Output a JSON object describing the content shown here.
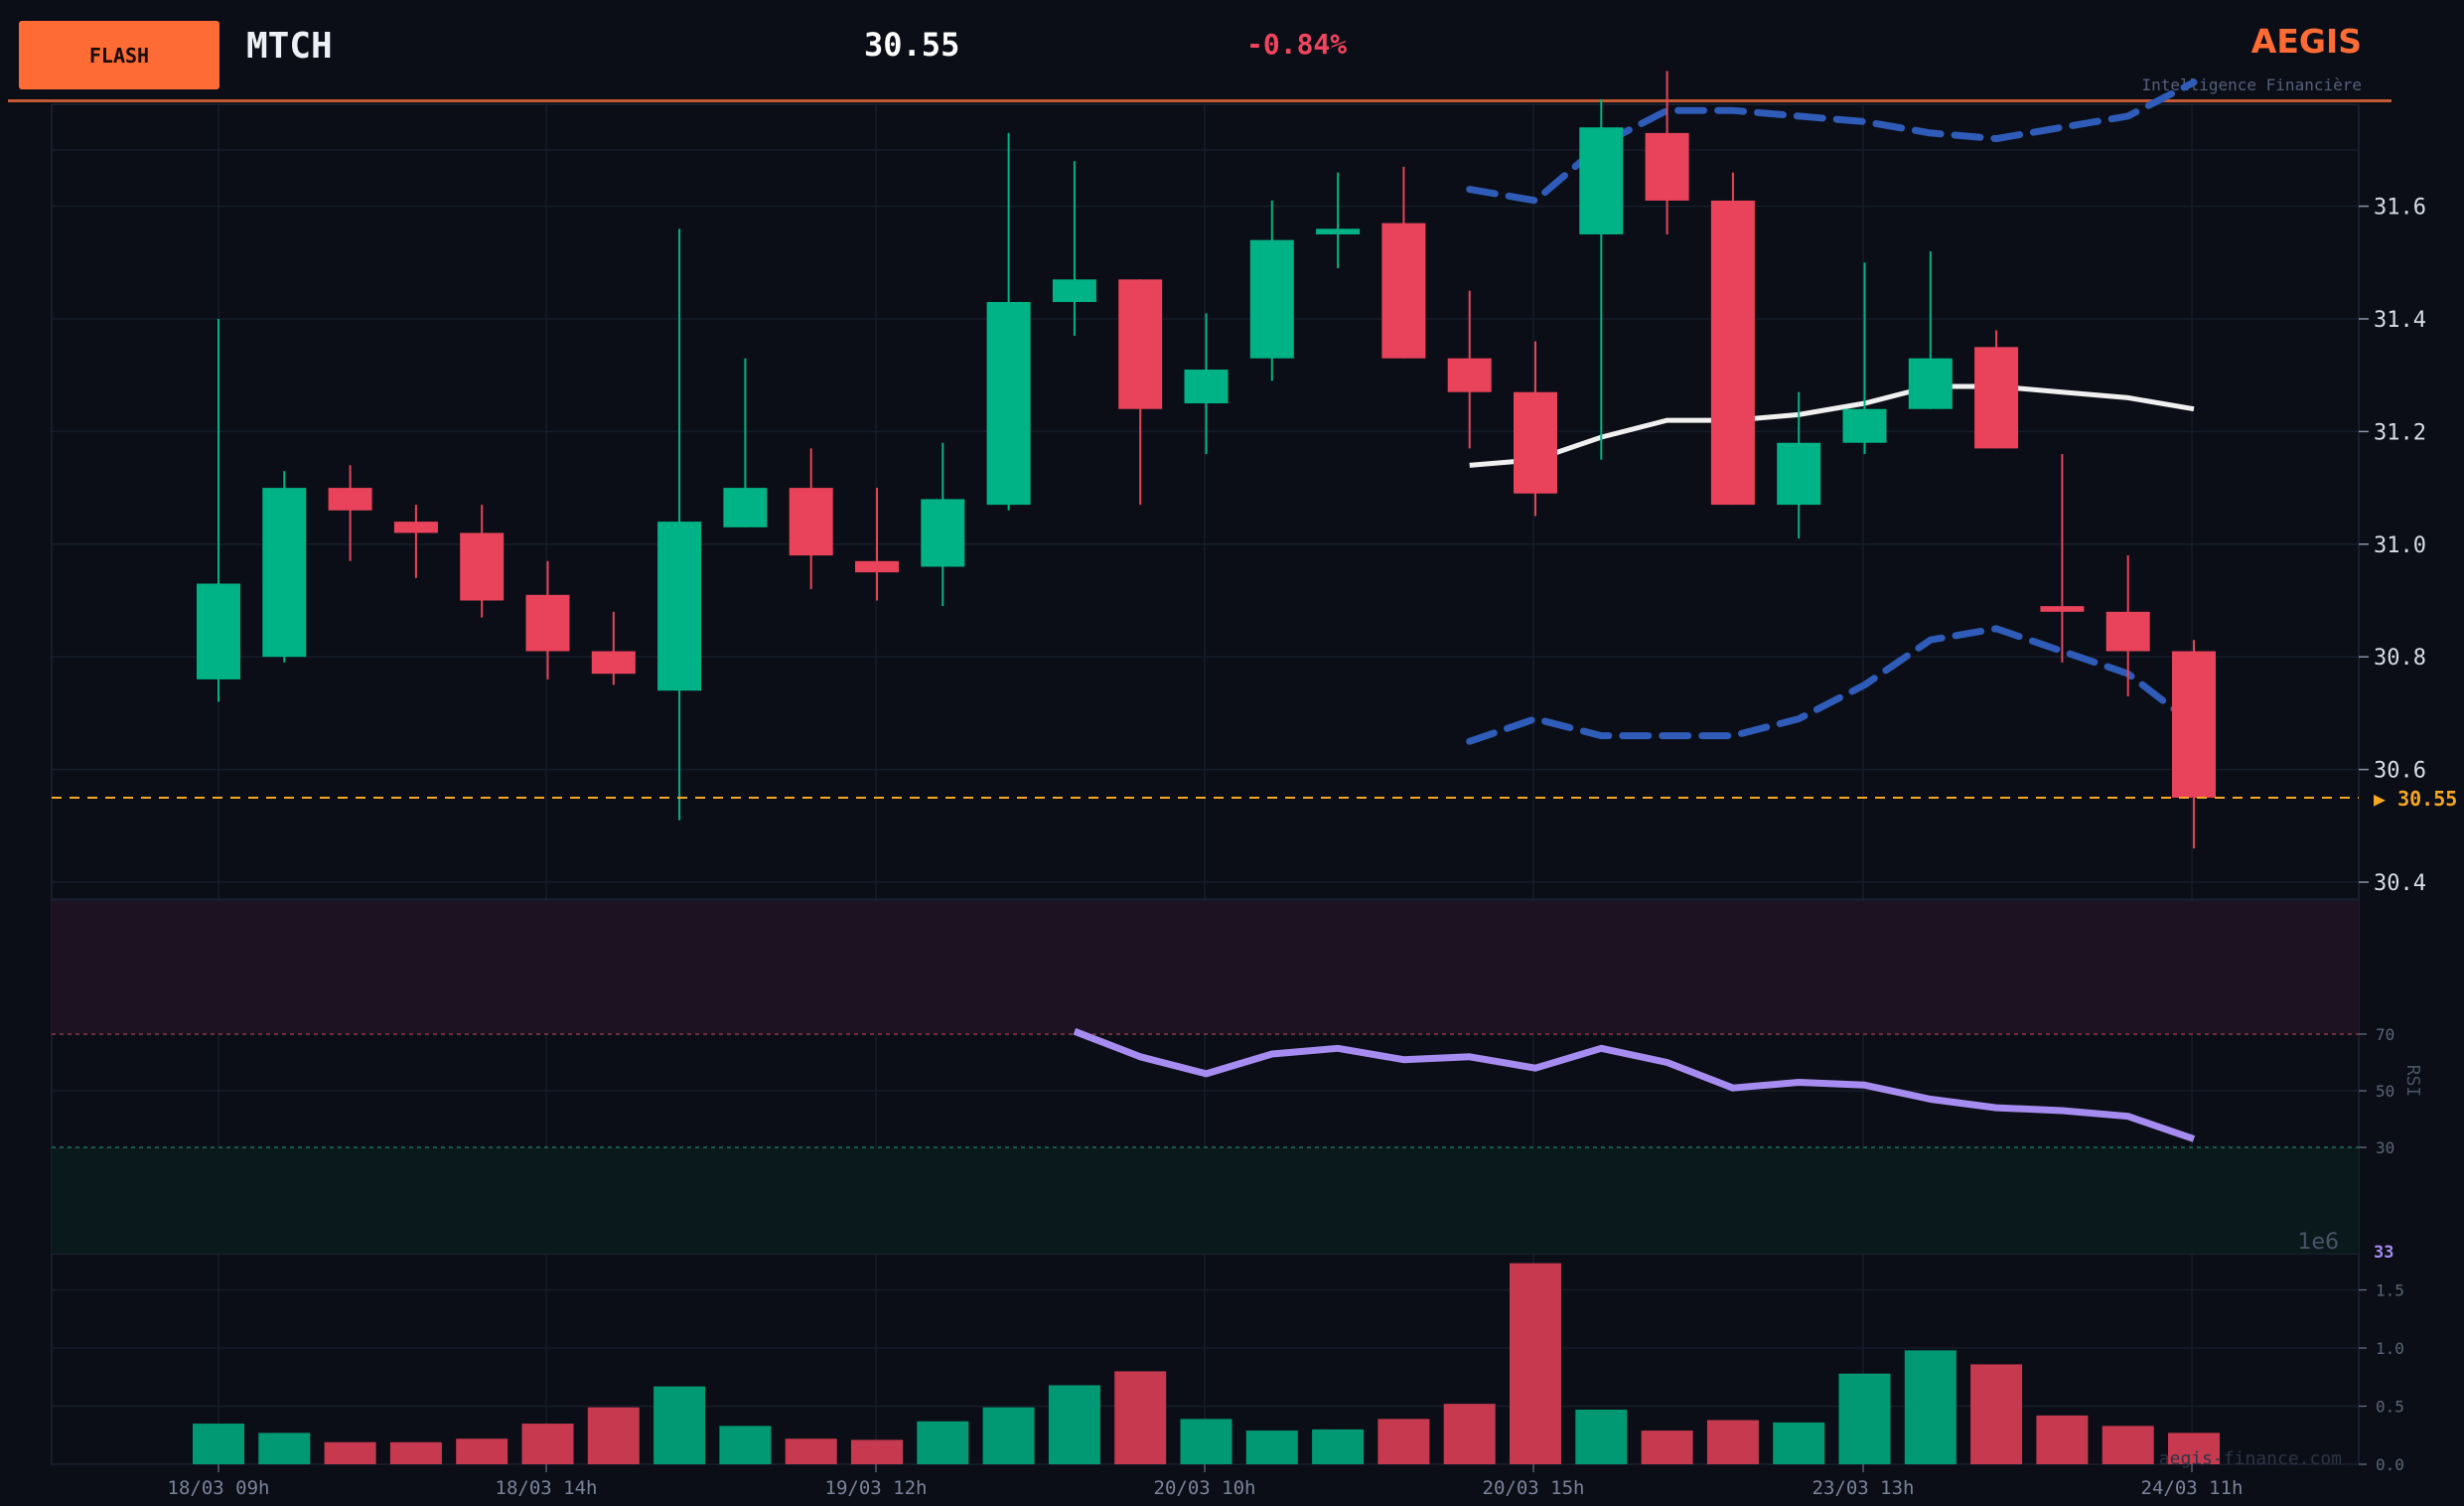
{
  "header": {
    "badge": "FLASH",
    "ticker": "MTCH",
    "price": "30.55",
    "change": "-0.84%",
    "brand": "AEGIS",
    "tagline": "Intelligence Financière"
  },
  "watermark": "aegis-finance.com",
  "colors": {
    "up": "#00b386",
    "down": "#e8435a",
    "band": "#2e5cb8",
    "sma": "#f0f0f0",
    "rsi": "#a68cf0",
    "last_price": "#f5a623",
    "accent": "#ff6b35"
  },
  "chart_data": [
    {
      "type": "candlestick",
      "title": "",
      "ylim": [
        30.35,
        31.8
      ],
      "y_ticks": [
        "30.4",
        "30.6",
        "30.8",
        "31.0",
        "31.2",
        "31.4",
        "31.6"
      ],
      "x_tick_labels": [
        "18/03 09h",
        "18/03 14h",
        "19/03 12h",
        "20/03 10h",
        "20/03 15h",
        "23/03 13h",
        "24/03 11h"
      ],
      "last_price_label": "▶ 30.55",
      "last_price": 30.55,
      "candles": [
        {
          "o": 30.76,
          "h": 31.4,
          "l": 30.72,
          "c": 30.93
        },
        {
          "o": 30.8,
          "h": 31.13,
          "l": 30.79,
          "c": 31.1
        },
        {
          "o": 31.1,
          "h": 31.14,
          "l": 30.97,
          "c": 31.06
        },
        {
          "o": 31.04,
          "h": 31.07,
          "l": 30.94,
          "c": 31.02
        },
        {
          "o": 31.02,
          "h": 31.07,
          "l": 30.87,
          "c": 30.9
        },
        {
          "o": 30.91,
          "h": 30.97,
          "l": 30.76,
          "c": 30.81
        },
        {
          "o": 30.81,
          "h": 30.88,
          "l": 30.75,
          "c": 30.77
        },
        {
          "o": 30.74,
          "h": 31.56,
          "l": 30.51,
          "c": 31.04
        },
        {
          "o": 31.03,
          "h": 31.33,
          "l": 31.03,
          "c": 31.1
        },
        {
          "o": 31.1,
          "h": 31.17,
          "l": 30.92,
          "c": 30.98
        },
        {
          "o": 30.97,
          "h": 31.1,
          "l": 30.9,
          "c": 30.95
        },
        {
          "o": 30.96,
          "h": 31.18,
          "l": 30.89,
          "c": 31.08
        },
        {
          "o": 31.07,
          "h": 31.73,
          "l": 31.06,
          "c": 31.43
        },
        {
          "o": 31.43,
          "h": 31.68,
          "l": 31.37,
          "c": 31.47
        },
        {
          "o": 31.47,
          "h": 31.47,
          "l": 31.07,
          "c": 31.24
        },
        {
          "o": 31.25,
          "h": 31.41,
          "l": 31.16,
          "c": 31.31
        },
        {
          "o": 31.33,
          "h": 31.61,
          "l": 31.29,
          "c": 31.54
        },
        {
          "o": 31.55,
          "h": 31.66,
          "l": 31.49,
          "c": 31.56
        },
        {
          "o": 31.57,
          "h": 31.67,
          "l": 31.33,
          "c": 31.33
        },
        {
          "o": 31.33,
          "h": 31.45,
          "l": 31.17,
          "c": 31.27
        },
        {
          "o": 31.27,
          "h": 31.36,
          "l": 31.05,
          "c": 31.09
        },
        {
          "o": 31.55,
          "h": 31.79,
          "l": 31.15,
          "c": 31.74
        },
        {
          "o": 31.73,
          "h": 31.84,
          "l": 31.55,
          "c": 31.61
        },
        {
          "o": 31.61,
          "h": 31.66,
          "l": 31.07,
          "c": 31.07
        },
        {
          "o": 31.07,
          "h": 31.27,
          "l": 31.01,
          "c": 31.18
        },
        {
          "o": 31.18,
          "h": 31.5,
          "l": 31.16,
          "c": 31.24
        },
        {
          "o": 31.24,
          "h": 31.52,
          "l": 31.24,
          "c": 31.33
        },
        {
          "o": 31.35,
          "h": 31.38,
          "l": 31.17,
          "c": 31.17
        },
        {
          "o": 30.89,
          "h": 31.16,
          "l": 30.79,
          "c": 30.88
        },
        {
          "o": 30.88,
          "h": 30.98,
          "l": 30.73,
          "c": 30.81
        },
        {
          "o": 30.81,
          "h": 30.83,
          "l": 30.46,
          "c": 30.55
        }
      ],
      "bollinger": {
        "start_index": 19,
        "upper": [
          31.63,
          31.61,
          31.71,
          31.77,
          31.77,
          31.76,
          31.75,
          31.73,
          31.72,
          31.74,
          31.76,
          31.82
        ],
        "middle": [
          31.14,
          31.15,
          31.19,
          31.22,
          31.22,
          31.23,
          31.25,
          31.28,
          31.28,
          31.27,
          31.26,
          31.24
        ],
        "lower": [
          30.65,
          30.69,
          30.66,
          30.66,
          30.66,
          30.69,
          30.75,
          30.83,
          30.85,
          30.81,
          30.77,
          30.68
        ]
      }
    },
    {
      "type": "line",
      "ylabel": "RSI",
      "y_ticks": [
        "70",
        "50",
        "30"
      ],
      "ylim": [
        0,
        100
      ],
      "overbought": 70,
      "oversold": 30,
      "last_value_label": "33",
      "start_index": 13,
      "values": [
        71,
        62,
        56,
        63,
        65,
        61,
        62,
        58,
        65,
        60,
        51,
        53,
        52,
        47,
        44,
        43,
        41,
        33
      ]
    },
    {
      "type": "bar",
      "ylabel": "",
      "scale_label": "1e6",
      "y_ticks": [
        "0.0",
        "0.5",
        "1.0",
        "1.5"
      ],
      "ylim": [
        0,
        1.7
      ],
      "values": [
        0.35,
        0.27,
        0.19,
        0.19,
        0.22,
        0.35,
        0.49,
        0.67,
        0.33,
        0.22,
        0.21,
        0.37,
        0.49,
        0.68,
        0.8,
        0.39,
        0.29,
        0.3,
        0.39,
        0.52,
        1.73,
        0.47,
        0.29,
        0.38,
        0.36,
        0.78,
        0.98,
        0.86,
        0.42,
        0.33,
        0.27
      ]
    }
  ]
}
